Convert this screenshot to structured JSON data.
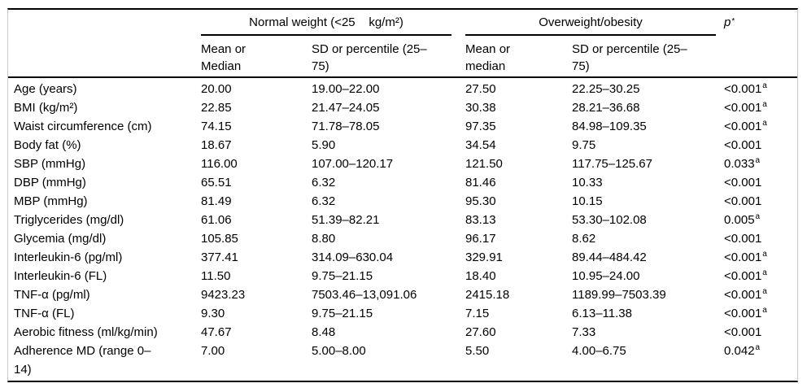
{
  "table": {
    "groups": {
      "normal": "Normal weight (<25    kg/m²)",
      "over": "Overweight/obesity"
    },
    "p_header": {
      "base": "p",
      "sup": "*"
    },
    "subheaders": {
      "nw_mean": "Mean or\nMedian",
      "nw_sd": "SD or percentile (25–\n75)",
      "ow_mean": "Mean or\nmedian",
      "ow_sd": "SD or percentile (25–\n75)"
    },
    "rows": [
      {
        "label": "Age (years)",
        "nw_mean": "20.00",
        "nw_sd": "19.00–22.00",
        "ow_mean": "27.50",
        "ow_sd": "22.25–30.25",
        "p": "<0.001",
        "p_sup": "a"
      },
      {
        "label": "BMI (kg/m²)",
        "nw_mean": "22.85",
        "nw_sd": "21.47–24.05",
        "ow_mean": "30.38",
        "ow_sd": "28.21–36.68",
        "p": "<0.001",
        "p_sup": "a"
      },
      {
        "label": "Waist circumference (cm)",
        "nw_mean": "74.15",
        "nw_sd": "71.78–78.05",
        "ow_mean": "97.35",
        "ow_sd": "84.98–109.35",
        "p": "<0.001",
        "p_sup": "a"
      },
      {
        "label": "Body fat (%)",
        "nw_mean": "18.67",
        "nw_sd": "5.90",
        "ow_mean": "34.54",
        "ow_sd": "9.75",
        "p": "<0.001",
        "p_sup": ""
      },
      {
        "label": "SBP (mmHg)",
        "nw_mean": "116.00",
        "nw_sd": "107.00–120.17",
        "ow_mean": "121.50",
        "ow_sd": "117.75–125.67",
        "p": "0.033",
        "p_sup": "a"
      },
      {
        "label": "DBP (mmHg)",
        "nw_mean": "65.51",
        "nw_sd": "6.32",
        "ow_mean": "81.46",
        "ow_sd": "10.33",
        "p": "<0.001",
        "p_sup": ""
      },
      {
        "label": "MBP (mmHg)",
        "nw_mean": "81.49",
        "nw_sd": "6.32",
        "ow_mean": "95.30",
        "ow_sd": "10.15",
        "p": "<0.001",
        "p_sup": ""
      },
      {
        "label": "Triglycerides (mg/dl)",
        "nw_mean": "61.06",
        "nw_sd": "51.39–82.21",
        "ow_mean": "83.13",
        "ow_sd": "53.30–102.08",
        "p": "0.005",
        "p_sup": "a"
      },
      {
        "label": "Glycemia (mg/dl)",
        "nw_mean": "105.85",
        "nw_sd": "8.80",
        "ow_mean": "96.17",
        "ow_sd": "8.62",
        "p": "<0.001",
        "p_sup": ""
      },
      {
        "label": "Interleukin-6 (pg/ml)",
        "nw_mean": "377.41",
        "nw_sd": "314.09–630.04",
        "ow_mean": "329.91",
        "ow_sd": "89.44–484.42",
        "p": "<0.001",
        "p_sup": "a"
      },
      {
        "label": "Interleukin-6 (FL)",
        "nw_mean": "11.50",
        "nw_sd": "9.75–21.15",
        "ow_mean": "18.40",
        "ow_sd": "10.95–24.00",
        "p": "<0.001",
        "p_sup": "a"
      },
      {
        "label": "TNF-α (pg/ml)",
        "nw_mean": "9423.23",
        "nw_sd": "7503.46–13,091.06",
        "ow_mean": "2415.18",
        "ow_sd": "1189.99–7503.39",
        "p": "<0.001",
        "p_sup": "a"
      },
      {
        "label": "TNF-α (FL)",
        "nw_mean": "9.30",
        "nw_sd": "9.75–21.15",
        "ow_mean": "7.15",
        "ow_sd": "6.13–11.38",
        "p": "<0.001",
        "p_sup": "a"
      },
      {
        "label": "Aerobic fitness (ml/kg/min)",
        "nw_mean": "47.67",
        "nw_sd": "8.48",
        "ow_mean": "27.60",
        "ow_sd": "7.33",
        "p": "<0.001",
        "p_sup": ""
      },
      {
        "label": "Adherence MD (range 0–\n14)",
        "nw_mean": "7.00",
        "nw_sd": "5.00–8.00",
        "ow_mean": "5.50",
        "ow_sd": "4.00–6.75",
        "p": "0.042",
        "p_sup": "a"
      }
    ]
  }
}
